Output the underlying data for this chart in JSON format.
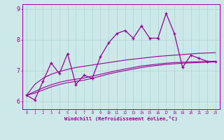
{
  "xlabel": "Windchill (Refroidissement éolien,°C)",
  "x_values": [
    0,
    1,
    2,
    3,
    4,
    5,
    6,
    7,
    8,
    9,
    10,
    11,
    12,
    13,
    14,
    15,
    16,
    17,
    18,
    19,
    20,
    21,
    22,
    23
  ],
  "y_main": [
    6.2,
    6.05,
    6.65,
    7.25,
    6.9,
    7.55,
    6.55,
    6.85,
    6.75,
    7.45,
    7.9,
    8.2,
    8.3,
    8.05,
    8.45,
    8.05,
    8.05,
    8.85,
    8.2,
    7.1,
    7.5,
    7.4,
    7.3,
    7.3
  ],
  "y_smooth_top": [
    6.2,
    6.55,
    6.75,
    6.88,
    6.97,
    7.04,
    7.1,
    7.14,
    7.18,
    7.22,
    7.26,
    7.3,
    7.34,
    7.37,
    7.4,
    7.43,
    7.46,
    7.48,
    7.5,
    7.52,
    7.54,
    7.56,
    7.57,
    7.58
  ],
  "y_smooth_mid": [
    6.2,
    6.32,
    6.44,
    6.54,
    6.62,
    6.68,
    6.72,
    6.76,
    6.82,
    6.88,
    6.94,
    7.0,
    7.05,
    7.1,
    7.15,
    7.18,
    7.21,
    7.24,
    7.26,
    7.27,
    7.28,
    7.29,
    7.3,
    7.3
  ],
  "y_smooth_bot": [
    6.2,
    6.27,
    6.37,
    6.47,
    6.55,
    6.61,
    6.65,
    6.69,
    6.75,
    6.82,
    6.89,
    6.95,
    7.0,
    7.05,
    7.1,
    7.14,
    7.17,
    7.2,
    7.22,
    7.24,
    7.25,
    7.26,
    7.27,
    7.28
  ],
  "line_color": "#990099",
  "bg_color": "#cce8e8",
  "grid_color": "#aad4d4",
  "ylim": [
    5.75,
    9.15
  ],
  "xlim": [
    -0.5,
    23.5
  ]
}
